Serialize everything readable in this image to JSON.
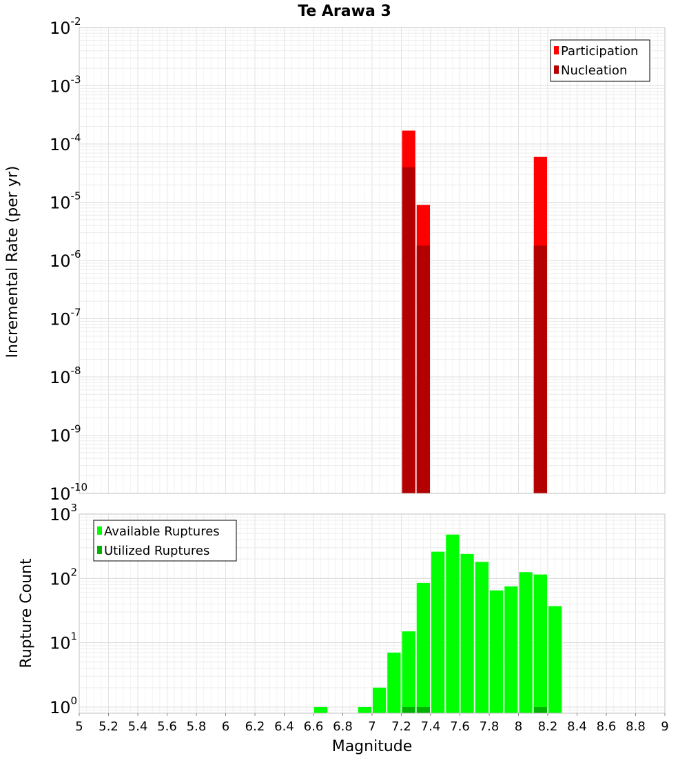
{
  "chart_data": [
    {
      "type": "bar",
      "title": "Te Arawa 3",
      "xlabel": "",
      "ylabel": "Incremental Rate (per yr)",
      "yscale": "log",
      "ylim": [
        1e-10,
        0.01
      ],
      "xlim": [
        5,
        9
      ],
      "ytick_exponents": [
        -10,
        -9,
        -8,
        -7,
        -6,
        -5,
        -4,
        -3,
        -2
      ],
      "bin_width": 0.1,
      "legend": {
        "placement": "top-right",
        "entries": [
          {
            "label": "Participation",
            "color": "#ff0000"
          },
          {
            "label": "Nucleation",
            "color": "#b30000"
          }
        ]
      },
      "series": [
        {
          "name": "Participation",
          "color": "#ff0000",
          "x": [
            7.25,
            7.35,
            8.15
          ],
          "values": [
            0.00017,
            9e-06,
            6e-05
          ]
        },
        {
          "name": "Nucleation",
          "color": "#b30000",
          "x": [
            7.25,
            7.35,
            8.15
          ],
          "values": [
            4e-05,
            1.8e-06,
            1.8e-06
          ]
        }
      ]
    },
    {
      "type": "bar",
      "xlabel": "Magnitude",
      "ylabel": "Rupture Count",
      "yscale": "log",
      "ylim": [
        0.8,
        1000
      ],
      "xlim": [
        5,
        9
      ],
      "ytick_exponents": [
        0,
        1,
        2,
        3
      ],
      "xticks": [
        "5",
        "5.2",
        "5.4",
        "5.6",
        "5.8",
        "6",
        "6.2",
        "6.4",
        "6.6",
        "6.8",
        "7",
        "7.2",
        "7.4",
        "7.6",
        "7.8",
        "8",
        "8.2",
        "8.4",
        "8.6",
        "8.8",
        "9"
      ],
      "bin_width": 0.1,
      "legend": {
        "placement": "top-left",
        "entries": [
          {
            "label": "Available Ruptures",
            "color": "#00ff00"
          },
          {
            "label": "Utilized Ruptures",
            "color": "#00b300"
          }
        ]
      },
      "series": [
        {
          "name": "Available Ruptures",
          "color": "#00ff00",
          "x": [
            6.65,
            6.95,
            7.05,
            7.15,
            7.25,
            7.35,
            7.45,
            7.55,
            7.65,
            7.75,
            7.85,
            7.95,
            8.05,
            8.15,
            8.25
          ],
          "values": [
            1,
            1,
            2,
            7,
            15,
            85,
            260,
            480,
            240,
            180,
            65,
            75,
            125,
            115,
            37
          ]
        },
        {
          "name": "Utilized Ruptures",
          "color": "#00b300",
          "x": [
            7.25,
            7.35,
            8.15
          ],
          "values": [
            1,
            1,
            1
          ]
        }
      ]
    }
  ]
}
